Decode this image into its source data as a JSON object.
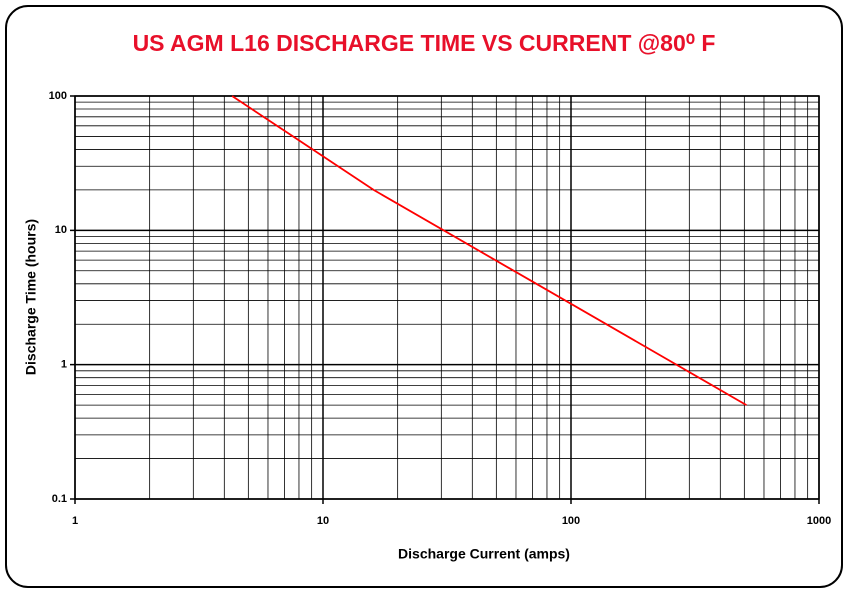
{
  "chart_data": {
    "type": "line",
    "title": "US AGM L16 DISCHARGE TIME VS CURRENT @80⁰ F",
    "x_label": "Discharge Current (amps)",
    "y_label": "Discharge Time (hours)",
    "x": [
      4.3,
      16,
      510
    ],
    "series": [
      {
        "name": "US AGM L16",
        "color": "#ff0000",
        "values": [
          100,
          20,
          0.5
        ]
      }
    ],
    "xlim": [
      1,
      1000
    ],
    "ylim": [
      0.1,
      100
    ],
    "xlog": true,
    "ylog": true,
    "xticks": [
      1,
      10,
      100,
      1000
    ],
    "yticks": [
      0.1,
      1,
      10,
      100
    ],
    "xminor_ticks": [
      2,
      3,
      4,
      5,
      6,
      7,
      8,
      9,
      20,
      30,
      40,
      50,
      60,
      70,
      80,
      90,
      200,
      300,
      400,
      500,
      600,
      700,
      800,
      900
    ],
    "yminor_ticks": [
      0.2,
      0.3,
      0.4,
      0.5,
      0.6,
      0.7,
      0.8,
      0.9,
      2,
      3,
      4,
      5,
      6,
      7,
      8,
      9,
      20,
      30,
      40,
      50,
      60,
      70,
      80,
      90
    ],
    "grid": true
  }
}
